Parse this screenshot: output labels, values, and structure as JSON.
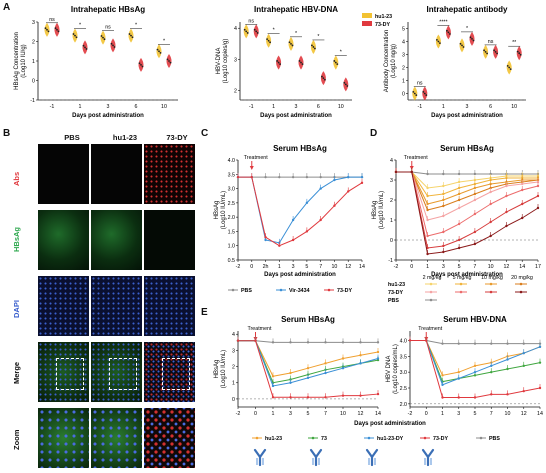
{
  "panel_letters": [
    "A",
    "B",
    "C",
    "D",
    "E"
  ],
  "panelA": {
    "legend": [
      {
        "name": "hu1-23",
        "color": "#f2c232"
      },
      {
        "name": "73-DY",
        "color": "#e0393e"
      }
    ],
    "xlabel": "Days post administration",
    "charts": [
      {
        "title": "Intrahepatic HBsAg",
        "ylabel": "HBsAg Concentration",
        "ylabel2": "(Log10 IU/g)",
        "yticks": [
          "-1",
          "0",
          "1",
          "2",
          "3"
        ],
        "xticks": [
          "-1",
          "1",
          "3",
          "6",
          "10"
        ],
        "sig": [
          "ns",
          "*",
          "ns",
          "*",
          "*"
        ],
        "chart_data": {
          "type": "violin",
          "categories": [
            "-1",
            "1",
            "3",
            "6",
            "10"
          ],
          "series": [
            {
              "name": "hu1-23",
              "values": [
                2.6,
                2.3,
                2.2,
                2.3,
                1.5
              ]
            },
            {
              "name": "73-DY",
              "values": [
                2.6,
                1.7,
                1.8,
                0.8,
                1.0
              ]
            }
          ],
          "ylim": [
            -1,
            3
          ]
        }
      },
      {
        "title": "Intrahepatic HBV-DNA",
        "ylabel": "HBV-DNA",
        "ylabel2": "(Log10 copies/g)",
        "yticks": [
          "2",
          "3",
          "4"
        ],
        "xticks": [
          "-1",
          "1",
          "3",
          "6",
          "10"
        ],
        "sig": [
          "ns",
          "*",
          "*",
          "*",
          "*"
        ],
        "chart_data": {
          "type": "violin",
          "categories": [
            "-1",
            "1",
            "3",
            "6",
            "10"
          ],
          "series": [
            {
              "name": "hu1-23",
              "values": [
                3.9,
                3.6,
                3.5,
                3.4,
                2.9
              ]
            },
            {
              "name": "73-DY",
              "values": [
                3.9,
                2.9,
                2.9,
                2.4,
                2.2
              ]
            }
          ],
          "ylim": [
            1.7,
            4.2
          ]
        }
      },
      {
        "title": "Intrahepatic antibody",
        "ylabel": "Antibody Concentration",
        "ylabel2": "(Log10 ng/g)",
        "yticks": [
          "0",
          "1",
          "2",
          "3",
          "4",
          "5"
        ],
        "xticks": [
          "-1",
          "1",
          "3",
          "6",
          "10"
        ],
        "sig": [
          "ns",
          "****",
          "*",
          "ns",
          "**"
        ],
        "chart_data": {
          "type": "violin",
          "categories": [
            "-1",
            "1",
            "3",
            "6",
            "10"
          ],
          "series": [
            {
              "name": "hu1-23",
              "values": [
                0,
                4.0,
                3.7,
                3.2,
                2.0
              ]
            },
            {
              "name": "73-DY",
              "values": [
                0,
                4.7,
                4.2,
                3.2,
                3.1
              ]
            }
          ],
          "ylim": [
            -0.5,
            5.5
          ]
        }
      }
    ]
  },
  "panelB": {
    "columns": [
      "PBS",
      "hu1-23",
      "73-DY"
    ],
    "rows": [
      {
        "label": "Abs",
        "color": "#e0393e"
      },
      {
        "label": "HBsAg",
        "color": "#2fa84f"
      },
      {
        "label": "DAPI",
        "color": "#3a5fcd"
      },
      {
        "label": "Merge",
        "color": "#111111"
      },
      {
        "label": "Zoom",
        "color": "#111111"
      }
    ]
  },
  "panelC": {
    "title": "Serum HBsAg",
    "treatment": "Treatment",
    "ylabel": "HBsAg",
    "ylabel2": "(Log10 IU/mL)",
    "xlabel": "Days post administration",
    "yticks": [
      "0.5",
      "1.0",
      "1.5",
      "2.0",
      "2.5",
      "3.0",
      "3.5",
      "4.0"
    ],
    "xticks": [
      "-2",
      "0",
      "2h",
      "1",
      "3",
      "5",
      "7",
      "10",
      "12",
      "14"
    ],
    "legend": [
      {
        "name": "PBS",
        "color": "#8c8c8c"
      },
      {
        "name": "Vir-3434",
        "color": "#3a8fd6"
      },
      {
        "name": "73-DY",
        "color": "#e0393e"
      }
    ],
    "chart_data": {
      "type": "line",
      "x": [
        "-2",
        "0",
        "2h",
        "1",
        "3",
        "5",
        "7",
        "10",
        "12",
        "14"
      ],
      "series": [
        {
          "name": "PBS",
          "values": [
            3.4,
            3.4,
            3.4,
            3.4,
            3.4,
            3.4,
            3.4,
            3.4,
            3.4,
            3.4
          ]
        },
        {
          "name": "Vir-3434",
          "values": [
            3.4,
            3.4,
            1.2,
            1.1,
            1.9,
            2.5,
            3.0,
            3.3,
            3.4,
            3.4
          ]
        },
        {
          "name": "73-DY",
          "values": [
            3.4,
            3.4,
            1.3,
            1.0,
            1.2,
            1.5,
            1.9,
            2.4,
            2.9,
            3.2
          ]
        }
      ],
      "ylim": [
        0.5,
        4.0
      ]
    }
  },
  "panelD": {
    "title": "Serum HBsAg",
    "treatment": "Treatment",
    "ylabel": "HBsAg",
    "ylabel2": "(Log10 IU/mL)",
    "xlabel": "Days post administration",
    "yticks": [
      "-1",
      "0",
      "1",
      "2",
      "3",
      "4"
    ],
    "xticks": [
      "-2",
      "0",
      "1",
      "3",
      "5",
      "7",
      "10",
      "12",
      "14",
      "17"
    ],
    "legend_doses": [
      "2 mg/kg",
      "5 mg/kg",
      "10 mg/kg",
      "20 mg/kg"
    ],
    "legend_rows": [
      {
        "name": "hu1-23",
        "colors": [
          "#f5d36b",
          "#f0b33a",
          "#e89a2c",
          "#d97d1c"
        ]
      },
      {
        "name": "73-DY",
        "colors": [
          "#f4a3a3",
          "#ec6b6b",
          "#d63c3c",
          "#8b1a1a"
        ]
      },
      {
        "name": "PBS",
        "colors": [
          "#8c8c8c"
        ]
      }
    ],
    "chart_data": {
      "type": "line",
      "x": [
        "-2",
        "0",
        "1",
        "3",
        "5",
        "7",
        "10",
        "12",
        "14",
        "17"
      ],
      "series": [
        {
          "name": "PBS",
          "values": [
            3.4,
            3.4,
            3.3,
            3.3,
            3.3,
            3.3,
            3.3,
            3.3,
            3.3,
            3.3
          ]
        },
        {
          "name": "hu1-23 2 mg/kg",
          "values": [
            3.4,
            3.4,
            2.6,
            2.7,
            2.9,
            3.0,
            3.1,
            3.2,
            3.2,
            3.2
          ]
        },
        {
          "name": "hu1-23 5 mg/kg",
          "values": [
            3.4,
            3.4,
            2.2,
            2.3,
            2.6,
            2.8,
            3.0,
            3.1,
            3.1,
            3.1
          ]
        },
        {
          "name": "hu1-23 10 mg/kg",
          "values": [
            3.4,
            3.4,
            1.8,
            2.0,
            2.3,
            2.6,
            2.8,
            2.9,
            3.0,
            3.0
          ]
        },
        {
          "name": "hu1-23 20 mg/kg",
          "values": [
            3.4,
            3.4,
            1.5,
            1.7,
            2.0,
            2.3,
            2.6,
            2.8,
            2.9,
            3.0
          ]
        },
        {
          "name": "73-DY 2 mg/kg",
          "values": [
            3.4,
            3.4,
            1.0,
            1.2,
            1.6,
            2.0,
            2.4,
            2.7,
            2.8,
            2.9
          ]
        },
        {
          "name": "73-DY 5 mg/kg",
          "values": [
            3.4,
            3.4,
            0.2,
            0.4,
            0.8,
            1.3,
            1.8,
            2.2,
            2.5,
            2.7
          ]
        },
        {
          "name": "73-DY 10 mg/kg",
          "values": [
            3.4,
            3.4,
            -0.4,
            -0.3,
            0.0,
            0.4,
            0.9,
            1.4,
            1.8,
            2.2
          ]
        },
        {
          "name": "73-DY 20 mg/kg",
          "values": [
            3.4,
            3.4,
            -0.7,
            -0.6,
            -0.4,
            -0.2,
            0.2,
            0.7,
            1.1,
            1.6
          ]
        }
      ],
      "ylim": [
        -1,
        4
      ]
    }
  },
  "panelE": {
    "xlabel": "Days post administration",
    "legend": [
      {
        "name": "hu1-23",
        "color": "#f0a030"
      },
      {
        "name": "73",
        "color": "#3fa63f"
      },
      {
        "name": "hu1-23-DY",
        "color": "#3a8fd6"
      },
      {
        "name": "73-DY",
        "color": "#e0393e"
      },
      {
        "name": "PBS",
        "color": "#8c8c8c"
      }
    ],
    "charts": [
      {
        "title": "Serum HBsAg",
        "treatment": "Treatment",
        "ylabel": "HBsAg",
        "ylabel2": "(Log10 IU/mL)",
        "yticks": [
          "0",
          "1",
          "2",
          "3",
          "4"
        ],
        "xticks": [
          "-2",
          "0",
          "1",
          "3",
          "5",
          "7",
          "10",
          "12",
          "14"
        ],
        "chart_data": {
          "type": "line",
          "x": [
            "-2",
            "0",
            "1",
            "3",
            "5",
            "7",
            "10",
            "12",
            "14"
          ],
          "series": [
            {
              "name": "PBS",
              "values": [
                3.6,
                3.6,
                3.5,
                3.5,
                3.5,
                3.5,
                3.5,
                3.5,
                3.5
              ]
            },
            {
              "name": "hu1-23",
              "values": [
                3.6,
                3.6,
                1.4,
                1.6,
                1.9,
                2.2,
                2.5,
                2.7,
                2.9
              ]
            },
            {
              "name": "73",
              "values": [
                3.6,
                3.6,
                1.0,
                1.2,
                1.5,
                1.8,
                2.0,
                2.2,
                2.4
              ]
            },
            {
              "name": "hu1-23-DY",
              "values": [
                3.6,
                3.6,
                0.8,
                1.0,
                1.3,
                1.6,
                1.9,
                2.2,
                2.5
              ]
            },
            {
              "name": "73-DY",
              "values": [
                3.6,
                3.6,
                0.1,
                0.1,
                0.1,
                0.1,
                0.2,
                0.2,
                0.3
              ]
            }
          ],
          "ylim": [
            -0.5,
            4.2
          ]
        }
      },
      {
        "title": "Serum HBV-DNA",
        "treatment": "Treatment",
        "ylabel": "HBV DNA",
        "ylabel2": "(Log10 copies/mL)",
        "yticks": [
          "2.0",
          "2.5",
          "3.0",
          "3.5",
          "4.0"
        ],
        "xticks": [
          "-2",
          "0",
          "1",
          "3",
          "5",
          "7",
          "10",
          "12",
          "14"
        ],
        "chart_data": {
          "type": "line",
          "x": [
            "-2",
            "0",
            "1",
            "3",
            "5",
            "7",
            "10",
            "12",
            "14"
          ],
          "series": [
            {
              "name": "PBS",
              "values": [
                4.0,
                4.0,
                3.9,
                3.9,
                3.9,
                3.9,
                3.9,
                3.9,
                3.9
              ]
            },
            {
              "name": "hu1-23",
              "values": [
                4.0,
                4.0,
                2.9,
                3.0,
                3.2,
                3.3,
                3.5,
                3.6,
                3.8
              ]
            },
            {
              "name": "73",
              "values": [
                4.0,
                4.0,
                2.7,
                2.8,
                2.9,
                3.0,
                3.1,
                3.2,
                3.3
              ]
            },
            {
              "name": "hu1-23-DY",
              "values": [
                4.0,
                4.0,
                2.6,
                2.8,
                3.0,
                3.2,
                3.4,
                3.6,
                3.8
              ]
            },
            {
              "name": "73-DY",
              "values": [
                4.0,
                4.0,
                2.2,
                2.2,
                2.2,
                2.3,
                2.3,
                2.4,
                2.5
              ]
            }
          ],
          "ylim": [
            1.9,
            4.3
          ]
        }
      }
    ]
  }
}
